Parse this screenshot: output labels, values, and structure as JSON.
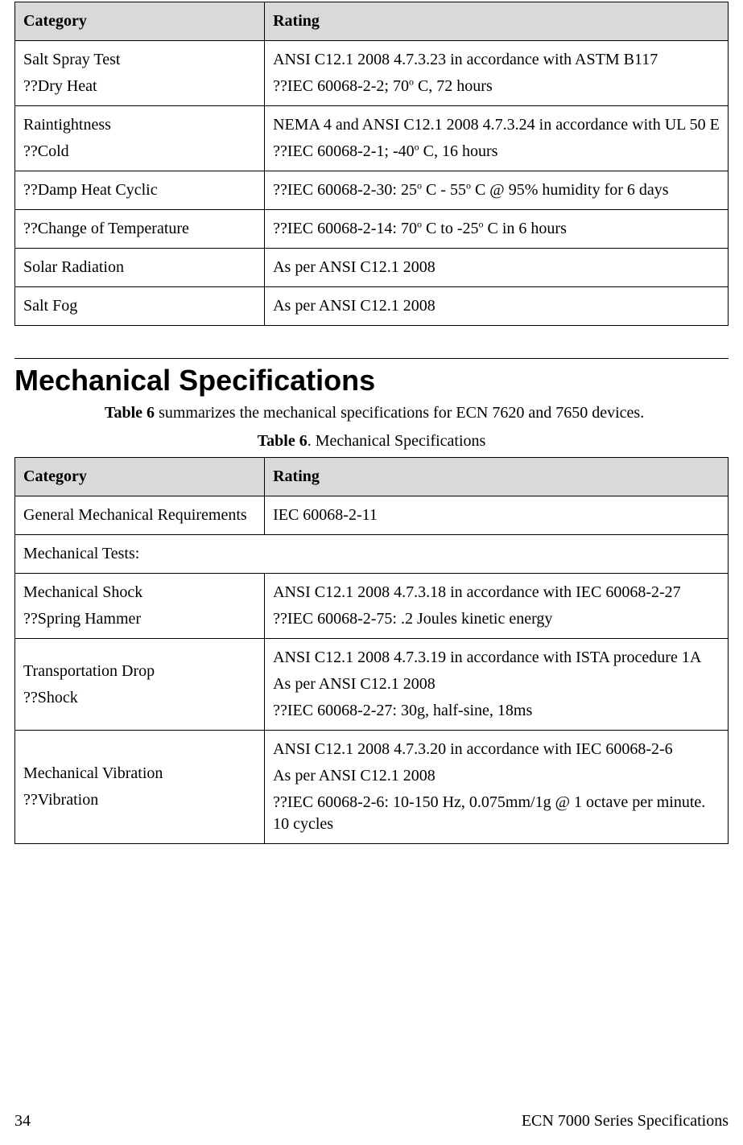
{
  "table1": {
    "headers": {
      "category": "Category",
      "rating": "Rating"
    },
    "rows": [
      {
        "cat": [
          "Salt Spray Test",
          "??Dry Heat"
        ],
        "rat": [
          "ANSI C12.1 2008 4.7.3.23 in accordance with ASTM B117",
          "??IEC 60068-2-2; 70<sup>o</sup> C, 72 hours"
        ]
      },
      {
        "cat": [
          "Raintightness",
          "??Cold"
        ],
        "rat": [
          "NEMA 4 and ANSI C12.1 2008 4.7.3.24 in accordance with UL 50 E",
          "??IEC 60068-2-1; -40<sup>o</sup> C, 16 hours"
        ]
      },
      {
        "cat": [
          "??Damp Heat Cyclic"
        ],
        "rat": [
          "??IEC 60068-2-30: 25<sup>o</sup> C - 55<sup>o</sup> C @ 95% humidity for 6 days"
        ]
      },
      {
        "cat": [
          "??Change of Temperature"
        ],
        "rat": [
          "??IEC 60068-2-14: 70<sup>o</sup> C to -25<sup>o</sup> C in 6 hours"
        ]
      },
      {
        "cat": [
          "Solar Radiation"
        ],
        "rat": [
          "As per ANSI C12.1 2008"
        ]
      },
      {
        "cat": [
          "Salt Fog"
        ],
        "rat": [
          "As per ANSI C12.1 2008"
        ]
      }
    ]
  },
  "section": {
    "heading": "Mechanical Specifications",
    "intro_prefix": "Table 6",
    "intro_rest": " summarizes the mechanical specifications for ECN 7620 and 7650 devices.",
    "caption_prefix": "Table 6",
    "caption_rest": ". Mechanical Specifications"
  },
  "table2": {
    "headers": {
      "category": "Category",
      "rating": "Rating"
    },
    "rows": [
      {
        "type": "normal",
        "cat": [
          "General Mechanical Requirements"
        ],
        "rat": [
          "IEC 60068-2-11"
        ]
      },
      {
        "type": "full",
        "text": "Mechanical Tests:"
      },
      {
        "type": "indent",
        "cat": [
          "Mechanical Shock",
          "??Spring Hammer"
        ],
        "rat": [
          "ANSI C12.1 2008 4.7.3.18 in accordance with IEC 60068-2-27",
          "??IEC 60068-2-75: .2 Joules kinetic energy"
        ]
      },
      {
        "type": "indent",
        "cat": [
          "Transportation Drop",
          "??Shock"
        ],
        "rat": [
          "ANSI C12.1 2008 4.7.3.19 in accordance with ISTA procedure 1A",
          "As per ANSI C12.1 2008",
          "??IEC 60068-2-27: 30g, half-sine, 18ms"
        ]
      },
      {
        "type": "indent",
        "cat": [
          "Mechanical Vibration",
          "??Vibration"
        ],
        "rat": [
          "ANSI C12.1 2008 4.7.3.20 in accordance with IEC 60068-2-6",
          "As per ANSI C12.1 2008",
          "??IEC 60068-2-6: 10-150 Hz, 0.075mm/1g @ 1 octave per minute. 10 cycles"
        ]
      }
    ]
  },
  "footer": {
    "page_number": "34",
    "doc_title": "ECN 7000 Series Specifications"
  }
}
